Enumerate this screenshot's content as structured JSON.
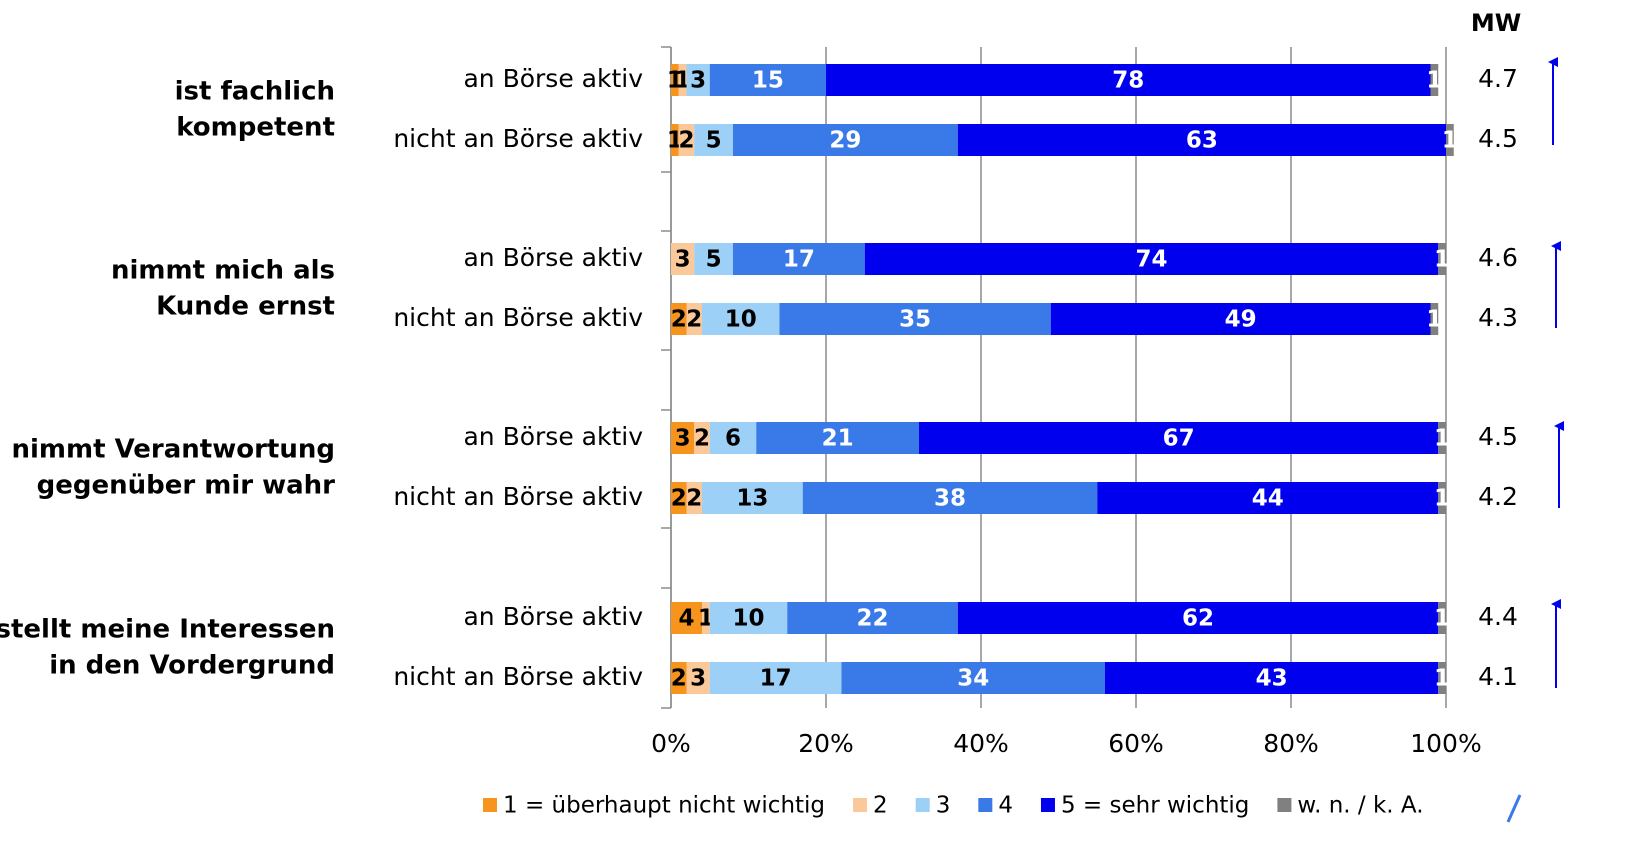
{
  "chart_data": {
    "type": "bar",
    "orientation": "horizontal",
    "stacked": true,
    "categories": [
      "an Börse aktiv",
      "nicht an Börse aktiv",
      "an Börse aktiv",
      "nicht an Börse aktiv",
      "an Börse aktiv",
      "nicht an Börse aktiv",
      "an Börse aktiv",
      "nicht an Börse aktiv"
    ],
    "group_labels": [
      [
        "ist fachlich",
        "kompetent"
      ],
      [
        "nimmt mich als",
        "Kunde ernst"
      ],
      [
        "nimmt Verantwortung",
        "gegenüber mir wahr"
      ],
      [
        "stellt meine Interessen",
        "in den Vordergrund"
      ]
    ],
    "series": [
      {
        "name": "1 = überhaupt nicht wichtig",
        "color": "#f7941d",
        "label_color": "#000000",
        "values": [
          1,
          1,
          null,
          2,
          3,
          2,
          4,
          2
        ]
      },
      {
        "name": "2",
        "color": "#fbc899",
        "label_color": "#000000",
        "values": [
          1,
          2,
          3,
          2,
          2,
          2,
          1,
          3
        ]
      },
      {
        "name": "3",
        "color": "#9dd0f7",
        "label_color": "#000000",
        "values": [
          3,
          5,
          5,
          10,
          6,
          13,
          10,
          17
        ]
      },
      {
        "name": "4",
        "color": "#3a7ae8",
        "label_color": "#ffffff",
        "values": [
          15,
          29,
          17,
          35,
          21,
          38,
          22,
          34
        ]
      },
      {
        "name": "5 = sehr wichtig",
        "color": "#0000ee",
        "label_color": "#ffffff",
        "values": [
          78,
          63,
          74,
          49,
          67,
          44,
          62,
          43
        ]
      },
      {
        "name": "w. n. / k. A.",
        "color": "#808080",
        "label_color": "#ffffff",
        "values": [
          1,
          1,
          1,
          1,
          1,
          1,
          1,
          1
        ]
      }
    ],
    "mean_header": "MW",
    "means": [
      4.7,
      4.5,
      4.6,
      4.3,
      4.5,
      4.2,
      4.4,
      4.1
    ],
    "xlim": [
      0,
      100
    ],
    "xticks": [
      {
        "value": 0,
        "label": "0%"
      },
      {
        "value": 20,
        "label": "20%"
      },
      {
        "value": 40,
        "label": "40%"
      },
      {
        "value": 60,
        "label": "60%"
      },
      {
        "value": 80,
        "label": "80%"
      },
      {
        "value": 100,
        "label": "100%"
      }
    ],
    "grid": true
  }
}
